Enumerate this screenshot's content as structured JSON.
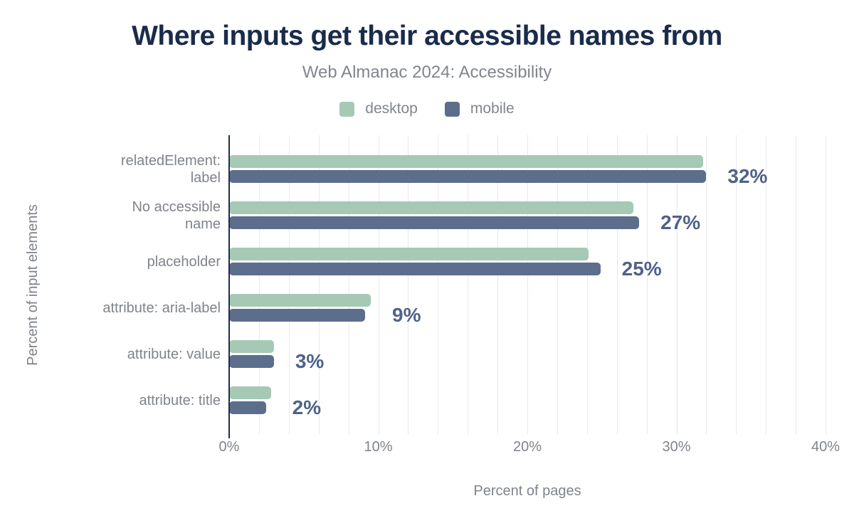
{
  "title": "Where inputs get their accessible names from",
  "subtitle": "Web Almanac 2024: Accessibility",
  "legend": [
    {
      "label": "desktop",
      "color": "#a6c9b5"
    },
    {
      "label": "mobile",
      "color": "#5d6e8c"
    }
  ],
  "chart_data": {
    "type": "bar",
    "orientation": "horizontal",
    "title": "Where inputs get their accessible names from",
    "subtitle": "Web Almanac 2024: Accessibility",
    "categories": [
      "relatedElement: label",
      "No accessible name",
      "placeholder",
      "attribute: aria-label",
      "attribute: value",
      "attribute: title"
    ],
    "category_display": [
      [
        "relatedElement:",
        "label"
      ],
      [
        "No accessible",
        "name"
      ],
      [
        "placeholder"
      ],
      [
        "attribute: aria-label"
      ],
      [
        "attribute: value"
      ],
      [
        "attribute: title"
      ]
    ],
    "series": [
      {
        "name": "desktop",
        "color": "#a6c9b5",
        "values": [
          31.8,
          27.1,
          24.1,
          9.5,
          3.0,
          2.8
        ]
      },
      {
        "name": "mobile",
        "color": "#5d6e8c",
        "values": [
          32.0,
          27.5,
          24.9,
          9.1,
          3.0,
          2.5
        ]
      }
    ],
    "value_labels": [
      "32%",
      "27%",
      "25%",
      "9%",
      "3%",
      "2%"
    ],
    "xlabel": "Percent of pages",
    "ylabel": "Percent of input elements",
    "xlim": [
      0,
      40
    ],
    "xticks": [
      "0%",
      "10%",
      "20%",
      "30%",
      "40%"
    ],
    "grid_step": 2,
    "grid": "vertical",
    "legend_position": "top"
  },
  "colors": {
    "title": "#1a2b4b",
    "muted": "#81858c",
    "axis-text": "#7f838b",
    "value": "#4f628a",
    "grid": "#e9e9e9",
    "axisline": "#1e2c4f",
    "bg": "#ffffff"
  }
}
